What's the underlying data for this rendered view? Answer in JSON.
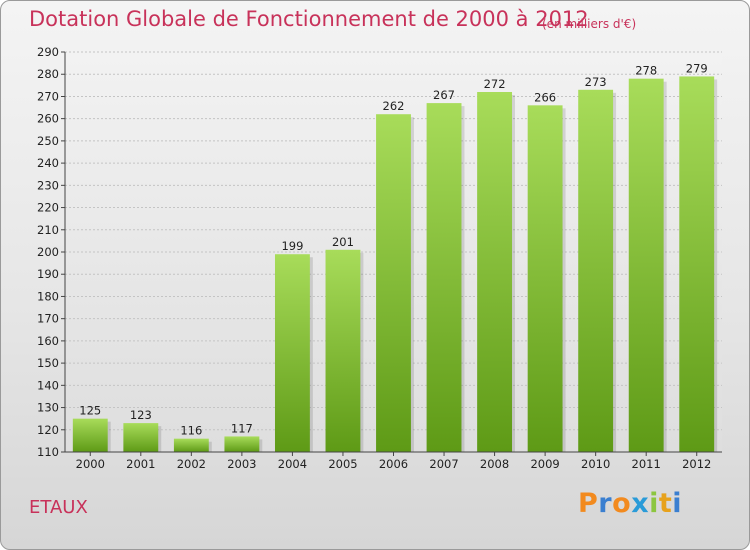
{
  "title": "Dotation Globale de Fonctionnement de 2000 à 2012",
  "unit_note": "(en milliers d'€)",
  "commune": "ETAUX",
  "logo": {
    "letters": [
      "P",
      "r",
      "o",
      "x",
      "i",
      "t",
      "i"
    ],
    "colors": [
      "#f28a1e",
      "#3a7fd0",
      "#f28a1e",
      "#2a9bd8",
      "#8cc63f",
      "#e7a21c",
      "#3a7fd0"
    ]
  },
  "colors": {
    "bar": "#7dbb2f",
    "bar_light": "#a8dc5a",
    "bar_dark": "#5e9a16",
    "accent": "#c8325a"
  },
  "chart_data": {
    "type": "bar",
    "categories": [
      "2000",
      "2001",
      "2002",
      "2003",
      "2004",
      "2005",
      "2006",
      "2007",
      "2008",
      "2009",
      "2010",
      "2011",
      "2012"
    ],
    "values": [
      125,
      123,
      116,
      117,
      199,
      201,
      262,
      267,
      272,
      266,
      273,
      278,
      279
    ],
    "value_labels": [
      "125",
      "123",
      "116",
      "117",
      "199",
      "201",
      "262",
      "267",
      "272",
      "266",
      "273",
      "278",
      "279"
    ],
    "title": "Dotation Globale de Fonctionnement de 2000 à 2012",
    "ylim": [
      110,
      290
    ],
    "yticks": [
      "110",
      "120",
      "130",
      "140",
      "150",
      "160",
      "170",
      "180",
      "190",
      "200",
      "210",
      "220",
      "230",
      "240",
      "250",
      "260",
      "270",
      "280",
      "290"
    ],
    "grid": true,
    "legend": "none"
  }
}
